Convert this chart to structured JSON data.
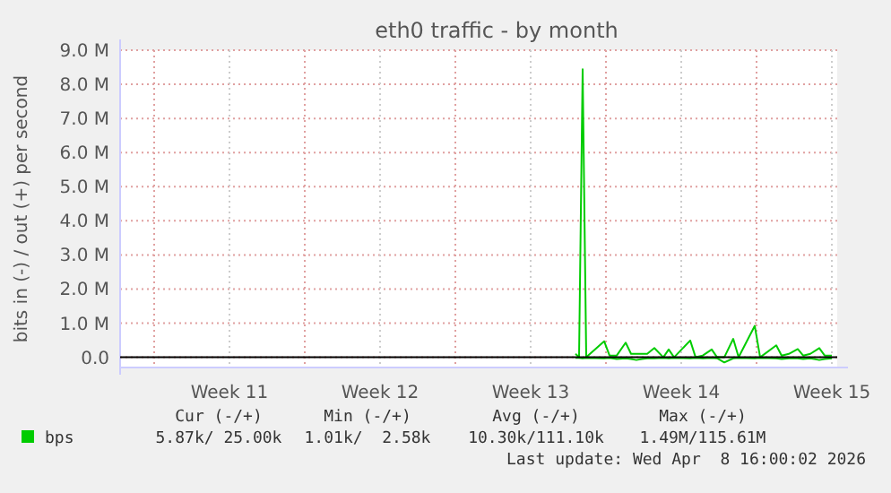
{
  "chart_data": {
    "type": "line",
    "title": "eth0 traffic - by month",
    "ylabel": "bits in (-) / out (+) per second",
    "xlim": [
      "2026-03-07T10:00",
      "2026-04-09T18:00"
    ],
    "xticks": [
      {
        "value": "2026-03-09",
        "label": null
      },
      {
        "value": "2026-03-12T12:00",
        "label": "Week 11"
      },
      {
        "value": "2026-03-16",
        "label": null
      },
      {
        "value": "2026-03-19T12:00",
        "label": "Week 12"
      },
      {
        "value": "2026-03-23",
        "label": null
      },
      {
        "value": "2026-03-26T12:00",
        "label": "Week 13"
      },
      {
        "value": "2026-03-30",
        "label": null
      },
      {
        "value": "2026-04-02T12:00",
        "label": "Week 14"
      },
      {
        "value": "2026-04-06",
        "label": null
      },
      {
        "value": "2026-04-09T12:00",
        "label": "Week 15"
      }
    ],
    "ylim": [
      -300000,
      9000000
    ],
    "yticks": [
      {
        "value": 0,
        "label": "0.0"
      },
      {
        "value": 1000000,
        "label": "1.0 M"
      },
      {
        "value": 2000000,
        "label": "2.0 M"
      },
      {
        "value": 3000000,
        "label": "3.0 M"
      },
      {
        "value": 4000000,
        "label": "4.0 M"
      },
      {
        "value": 5000000,
        "label": "5.0 M"
      },
      {
        "value": 6000000,
        "label": "6.0 M"
      },
      {
        "value": 7000000,
        "label": "7.0 M"
      },
      {
        "value": 8000000,
        "label": "8.0 M"
      },
      {
        "value": 9000000,
        "label": "9.0 M"
      }
    ],
    "x": [
      "2026-03-28T14:00",
      "2026-03-28T18:00",
      "2026-03-28T22:00",
      "2026-03-29T02:00",
      "2026-03-29T22:00",
      "2026-03-30T04:00",
      "2026-03-30T12:00",
      "2026-03-30T22:00",
      "2026-03-31T04:00",
      "2026-03-31T10:00",
      "2026-03-31T16:00",
      "2026-03-31T22:00",
      "2026-04-01T06:00",
      "2026-04-01T16:00",
      "2026-04-01T22:00",
      "2026-04-02T04:00",
      "2026-04-02T22:00",
      "2026-04-03T04:00",
      "2026-04-03T12:00",
      "2026-04-03T22:00",
      "2026-04-04T04:00",
      "2026-04-04T12:00",
      "2026-04-04T22:00",
      "2026-04-05T04:00",
      "2026-04-05T22:00",
      "2026-04-06T04:00",
      "2026-04-06T22:00",
      "2026-04-07T04:00",
      "2026-04-07T12:00",
      "2026-04-07T22:00",
      "2026-04-08T04:00",
      "2026-04-08T12:00",
      "2026-04-08T22:00",
      "2026-04-09T04:00",
      "2026-04-09T12:00"
    ],
    "series": [
      {
        "name": "bps",
        "color": "#00cc00",
        "values": [
          100000,
          0,
          8440000,
          0,
          470000,
          50000,
          50000,
          430000,
          100000,
          100000,
          100000,
          100000,
          270000,
          0,
          230000,
          0,
          490000,
          0,
          50000,
          230000,
          0,
          0,
          540000,
          0,
          920000,
          0,
          350000,
          50000,
          100000,
          240000,
          50000,
          100000,
          270000,
          50000,
          50000
        ]
      },
      {
        "color": "#00cc00",
        "values": [
          -20000,
          -20000,
          -30000,
          -20000,
          -30000,
          -20000,
          -50000,
          -30000,
          -50000,
          -80000,
          -50000,
          -30000,
          -30000,
          -20000,
          -30000,
          -20000,
          -30000,
          -20000,
          -30000,
          -20000,
          -30000,
          -150000,
          -30000,
          -20000,
          -30000,
          -20000,
          -30000,
          -50000,
          -30000,
          -30000,
          -50000,
          -30000,
          -80000,
          -50000,
          -30000
        ]
      }
    ],
    "grid": true,
    "legend": "bottom left",
    "annotations": [
      "Cur (-/+)",
      "Min (-/+)",
      "Avg (-/+)",
      "Max (-/+)",
      "5.87k/ 25.00k",
      "1.01k/  2.58k",
      "10.30k/111.10k",
      "1.49M/115.61M",
      "Last update: Wed Apr  8 16:00:02 2026"
    ]
  }
}
